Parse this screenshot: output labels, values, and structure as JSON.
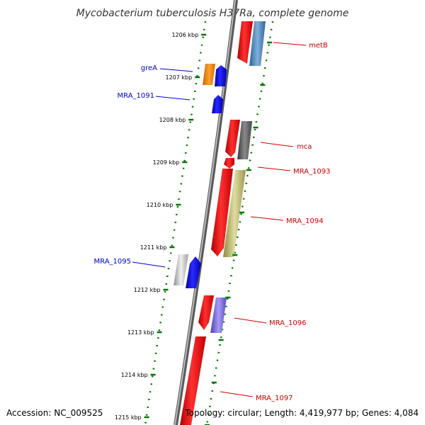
{
  "title": "Mycobacterium tuberculosis H37Ra, complete genome",
  "accession": "Accession: NC_009525",
  "topology": "Topology: circular; Length: 4,419,977 bp; Genes: 4,084",
  "kbp_ticks": [
    {
      "label": "1206 kbp",
      "kbp": 1206
    },
    {
      "label": "1207 kbp",
      "kbp": 1207
    },
    {
      "label": "1208 kbp",
      "kbp": 1208
    },
    {
      "label": "1209 kbp",
      "kbp": 1209
    },
    {
      "label": "1210 kbp",
      "kbp": 1210
    },
    {
      "label": "1211 kbp",
      "kbp": 1211
    },
    {
      "label": "1212 kbp",
      "kbp": 1212
    },
    {
      "label": "1213 kbp",
      "kbp": 1213
    },
    {
      "label": "1214 kbp",
      "kbp": 1214
    },
    {
      "label": "1215 kbp",
      "kbp": 1215
    }
  ],
  "gene_labels": [
    {
      "name": "metB",
      "strand": "plus",
      "color": "#cc0000"
    },
    {
      "name": "greA",
      "strand": "minus",
      "color": "#0000cc"
    },
    {
      "name": "MRA_1091",
      "strand": "minus",
      "color": "#0000cc"
    },
    {
      "name": "mca",
      "strand": "plus",
      "color": "#cc0000"
    },
    {
      "name": "MRA_1093",
      "strand": "plus",
      "color": "#cc0000"
    },
    {
      "name": "MRA_1094",
      "strand": "plus",
      "color": "#cc0000"
    },
    {
      "name": "MRA_1095",
      "strand": "minus",
      "color": "#0000cc"
    },
    {
      "name": "MRA_1096",
      "strand": "plus",
      "color": "#cc0000"
    },
    {
      "name": "MRA_1097",
      "strand": "plus",
      "color": "#cc0000"
    }
  ],
  "colors": {
    "backbone": "#7a7a7a",
    "forward_gene": "#ff0000",
    "reverse_gene": "#0000ff",
    "tick": "#007700",
    "metB_cog": "#4682b4",
    "greA_cog": "#ff8c00",
    "mca_cog": "#696969",
    "MRA_1094_cog": "#bdb76b",
    "MRA_1095_cog": "#b0b0b0",
    "MRA_1096_cog": "#7b68ee"
  }
}
